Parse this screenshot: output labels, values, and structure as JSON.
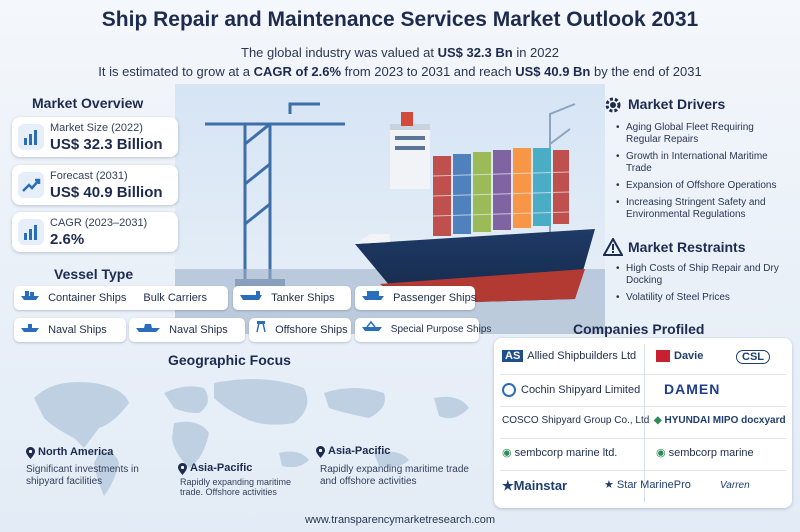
{
  "header": {
    "title": "Ship Repair and Maintenance Services Market Outlook 2031",
    "line1_pre": "The global industry was valued at ",
    "line1_value": "US$ 32.3 Bn",
    "line1_post": " in 2022",
    "line2_pre": "It is estimated to grow at a ",
    "line2_cagr": "CAGR of 2.6%",
    "line2_mid": " from 2023 to 2031 and reach ",
    "line2_value": "US$ 40.9 Bn",
    "line2_post": " by the end of 2031"
  },
  "overview": {
    "title": "Market Overview",
    "cards": [
      {
        "label": "Market Size (2022)",
        "value": "US$ 32.3 Billion",
        "icon": "bar-chart-icon"
      },
      {
        "label": "Forecast (2031)",
        "value": "US$ 40.9 Billion",
        "icon": "growth-arrow-icon"
      },
      {
        "label": "CAGR (2023–2031)",
        "value": "2.6%",
        "icon": "bar-chart-icon"
      }
    ]
  },
  "vessel": {
    "title": "Vessel Type",
    "chips": [
      "Container Ships",
      "Bulk Carriers",
      "Tanker Ships",
      "Passenger Ships",
      "Naval Ships",
      "Naval Ships",
      "Offshore Ships",
      "Special Purpose Ships"
    ]
  },
  "drivers": {
    "title": "Market Drivers",
    "items": [
      "Aging Global Fleet Requiring Regular Repairs",
      "Growth in International Maritime Trade",
      "Expansion of Offshore Operations",
      "Increasing Stringent Safety and Environmental Regulations"
    ]
  },
  "restraints": {
    "title": "Market Restraints",
    "items": [
      "High Costs of Ship Repair and Dry Docking",
      "Volatility of Steel Prices"
    ]
  },
  "companies": {
    "title": "Companies Profiled",
    "list": [
      "Allied Shipbuilders Ltd",
      "Davie",
      "CSL",
      "Cochin Shipyard Limited",
      "DAMEN",
      "COSCO Shipyard Group Co., Ltd",
      "HYUNDAI MIPO docxyard",
      "sembcorp marine ltd.",
      "sembcorp marine",
      "Mainstar",
      "Star MarinePro",
      "Varren"
    ]
  },
  "geo": {
    "title": "Geographic Focus",
    "regions": [
      {
        "name": "North America",
        "text": "Significant investments in shipyard facilities"
      },
      {
        "name": "Asia-Pacific",
        "text": "Rapidly expanding maritime trade. Offshore activities"
      },
      {
        "name": "Asia-Pacific",
        "text": "Rapidly expanding maritime trade and offshore activities"
      }
    ]
  },
  "footer": "www.transparencymarketresearch.com",
  "colors": {
    "navy": "#1d2b4f",
    "accent": "#2a6ebb",
    "hull_red": "#b23a33"
  }
}
